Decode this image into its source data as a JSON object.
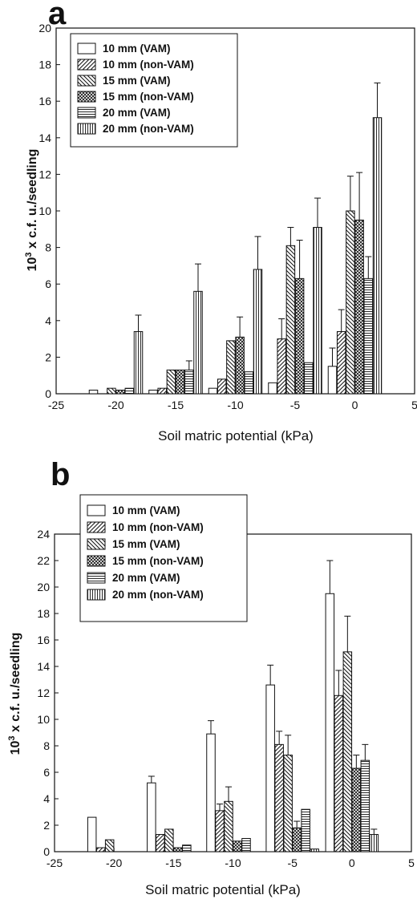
{
  "chart_data": [
    {
      "type": "bar",
      "panel_label": "a",
      "xlabel": "Soil matric potential (kPa)",
      "ylabel_base": "10",
      "ylabel_exp": "3",
      "ylabel_rest": " x c.f. u./seedling",
      "xlim": [
        -25,
        5
      ],
      "ylim": [
        0,
        20
      ],
      "xticks": [
        -25,
        -20,
        -15,
        -10,
        -5,
        0,
        5
      ],
      "yticks": [
        0,
        2,
        4,
        6,
        8,
        10,
        12,
        14,
        16,
        18,
        20
      ],
      "grid": false,
      "legend_position": "top-left",
      "group_centers": [
        -20,
        -15,
        -10,
        -5,
        0
      ],
      "series": [
        {
          "name": "10 mm (VAM)",
          "pattern": "empty",
          "values": [
            0.2,
            0.2,
            0.3,
            0.6,
            1.5
          ],
          "errors": [
            0,
            0,
            0,
            0,
            1.0
          ]
        },
        {
          "name": "10 mm (non-VAM)",
          "pattern": "diag-up",
          "values": [
            0,
            0.3,
            0.8,
            3.0,
            3.4
          ],
          "errors": [
            0,
            0,
            0,
            1.1,
            1.2
          ]
        },
        {
          "name": "15 mm (VAM)",
          "pattern": "diag-down",
          "values": [
            0.3,
            1.3,
            2.9,
            8.1,
            10.0
          ],
          "errors": [
            0,
            0,
            0,
            1.0,
            1.9
          ]
        },
        {
          "name": "15 mm (non-VAM)",
          "pattern": "cross",
          "values": [
            0.2,
            1.3,
            3.1,
            6.3,
            9.5
          ],
          "errors": [
            0,
            0,
            1.1,
            2.1,
            2.6
          ]
        },
        {
          "name": "20 mm (VAM)",
          "pattern": "horizontal",
          "values": [
            0.3,
            1.3,
            1.2,
            1.7,
            6.3
          ],
          "errors": [
            0,
            0.5,
            0,
            0,
            1.2
          ]
        },
        {
          "name": "20 mm (non-VAM)",
          "pattern": "vertical",
          "values": [
            3.4,
            5.6,
            6.8,
            9.1,
            15.1
          ],
          "errors": [
            0.9,
            1.5,
            1.8,
            1.6,
            1.9
          ]
        }
      ]
    },
    {
      "type": "bar",
      "panel_label": "b",
      "xlabel": "Soil matric potential (kPa)",
      "ylabel_base": "10",
      "ylabel_exp": "3",
      "ylabel_rest": " x c.f. u./seedling",
      "xlim": [
        -25,
        5
      ],
      "ylim": [
        0,
        24
      ],
      "xticks": [
        -25,
        -20,
        -15,
        -10,
        -5,
        0,
        5
      ],
      "yticks": [
        0,
        2,
        4,
        6,
        8,
        10,
        12,
        14,
        16,
        18,
        20,
        22,
        24
      ],
      "grid": false,
      "legend_position": "top-left",
      "group_centers": [
        -20,
        -15,
        -10,
        -5,
        0
      ],
      "series": [
        {
          "name": "10 mm (VAM)",
          "pattern": "empty",
          "values": [
            2.6,
            5.2,
            8.9,
            12.6,
            19.5
          ],
          "errors": [
            0,
            0.5,
            1.0,
            1.5,
            2.5
          ]
        },
        {
          "name": "10 mm (non-VAM)",
          "pattern": "diag-up",
          "values": [
            0.3,
            1.3,
            3.1,
            8.1,
            11.8
          ],
          "errors": [
            0,
            0,
            0.5,
            1.0,
            1.9
          ]
        },
        {
          "name": "15 mm (VAM)",
          "pattern": "diag-down",
          "values": [
            0.9,
            1.7,
            3.8,
            7.3,
            15.1
          ],
          "errors": [
            0,
            0,
            1.1,
            1.5,
            2.7
          ]
        },
        {
          "name": "15 mm (non-VAM)",
          "pattern": "cross",
          "values": [
            0,
            0.3,
            0.8,
            1.8,
            6.3
          ],
          "errors": [
            0,
            0,
            0,
            0.5,
            1.0
          ]
        },
        {
          "name": "20 mm (VAM)",
          "pattern": "horizontal",
          "values": [
            0,
            0.5,
            1.0,
            3.2,
            6.9
          ],
          "errors": [
            0,
            0,
            0,
            0,
            1.2
          ]
        },
        {
          "name": "20 mm (non-VAM)",
          "pattern": "vertical",
          "values": [
            0,
            0,
            0,
            0.2,
            1.3
          ],
          "errors": [
            0,
            0,
            0,
            0,
            0.4
          ]
        }
      ]
    }
  ]
}
